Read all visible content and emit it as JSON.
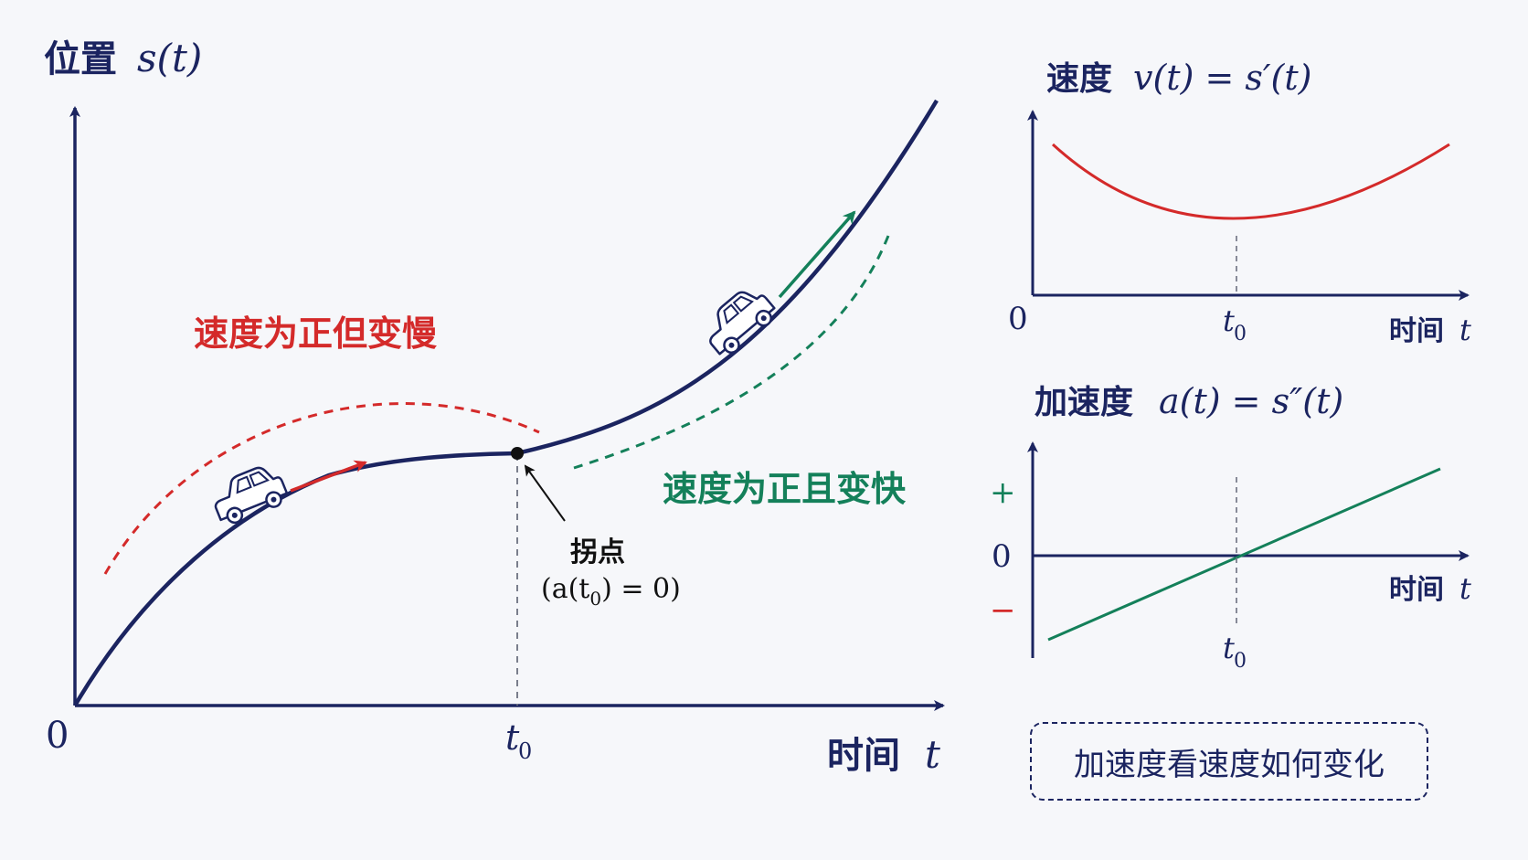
{
  "colors": {
    "navy": "#1b2460",
    "red": "#d42a2a",
    "green": "#14805a",
    "gray": "#6c7080"
  },
  "icons": [
    "car-icon",
    "car-icon"
  ],
  "main": {
    "y_axis_label": "位置",
    "y_axis_math": "s(t)",
    "x_axis_label": "时间",
    "x_axis_math": "t",
    "origin": "0",
    "t0_label": "t",
    "t0_sub": "0",
    "left_note": "速度为正但变慢",
    "right_note": "速度为正且变快",
    "inflection": {
      "title": "拐点",
      "pre": "(a(t",
      "sub": "0",
      "post": ") = 0)"
    }
  },
  "velocity": {
    "title_cn": "速度",
    "title_math": "v(t) = s′(t)",
    "origin": "0",
    "t0_label": "t",
    "t0_sub": "0",
    "x_label": "时间",
    "x_math": "t"
  },
  "acceleration": {
    "title_cn": "加速度",
    "title_math": "a(t) = s″(t)",
    "plus": "+",
    "zero": "0",
    "minus": "−",
    "t0_label": "t",
    "t0_sub": "0",
    "x_label": "时间",
    "x_math": "t"
  },
  "note": "加速度看速度如何变化"
}
